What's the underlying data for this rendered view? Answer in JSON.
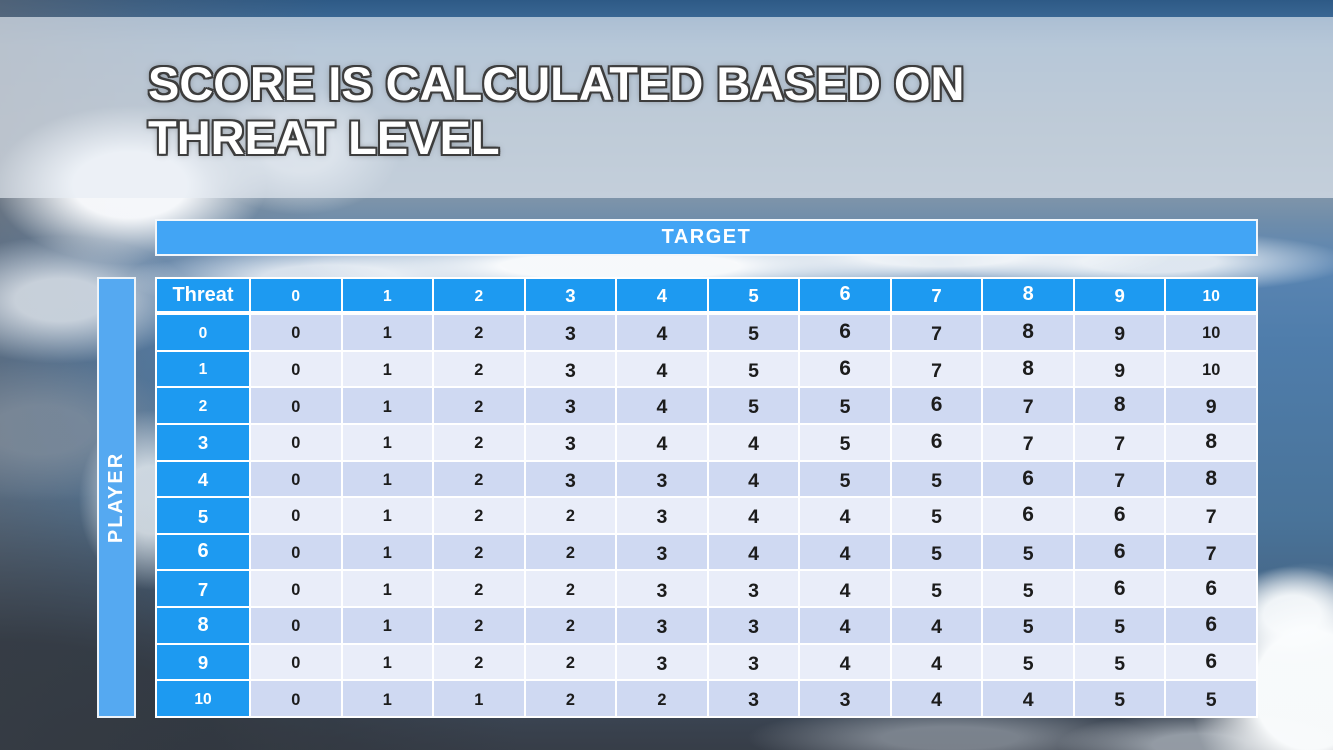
{
  "slide": {
    "title_line1": "SCORE IS CALCULATED BASED ON",
    "title_line2": "THREAT LEVEL"
  },
  "matrix": {
    "target_axis_label": "TARGET",
    "player_axis_label": "PLAYER",
    "corner_header": "Threat",
    "target_levels": [
      "0",
      "1",
      "2",
      "3",
      "4",
      "5",
      "6",
      "7",
      "8",
      "9",
      "10"
    ],
    "player_threat_levels": [
      "0",
      "1",
      "2",
      "3",
      "4",
      "5",
      "6",
      "7",
      "8",
      "9",
      "10"
    ],
    "scores": [
      [
        0,
        1,
        2,
        3,
        4,
        5,
        6,
        7,
        8,
        9,
        10
      ],
      [
        0,
        1,
        2,
        3,
        4,
        5,
        6,
        7,
        8,
        9,
        10
      ],
      [
        0,
        1,
        2,
        3,
        4,
        5,
        5,
        6,
        7,
        8,
        9
      ],
      [
        0,
        1,
        2,
        3,
        4,
        4,
        5,
        6,
        7,
        7,
        8
      ],
      [
        0,
        1,
        2,
        3,
        3,
        4,
        5,
        5,
        6,
        7,
        8
      ],
      [
        0,
        1,
        2,
        2,
        3,
        4,
        4,
        5,
        6,
        6,
        7
      ],
      [
        0,
        1,
        2,
        2,
        3,
        4,
        4,
        5,
        5,
        6,
        7
      ],
      [
        0,
        1,
        2,
        2,
        3,
        3,
        4,
        5,
        5,
        6,
        6
      ],
      [
        0,
        1,
        2,
        2,
        3,
        3,
        4,
        4,
        5,
        5,
        6
      ],
      [
        0,
        1,
        2,
        2,
        3,
        3,
        4,
        4,
        5,
        5,
        6
      ],
      [
        0,
        1,
        1,
        2,
        2,
        3,
        3,
        4,
        4,
        5,
        5
      ]
    ]
  },
  "colors": {
    "target_banner": "#42a5f5",
    "header_blue": "#1d9af1",
    "player_bar": "#55a9f1",
    "band_dark": "#cfd9f2",
    "band_light": "#e9edf9",
    "grid_white": "#ffffff",
    "score_text": "#1c1c1c",
    "title_text": "#ffffff",
    "title_outline": "#3d3d3d"
  }
}
